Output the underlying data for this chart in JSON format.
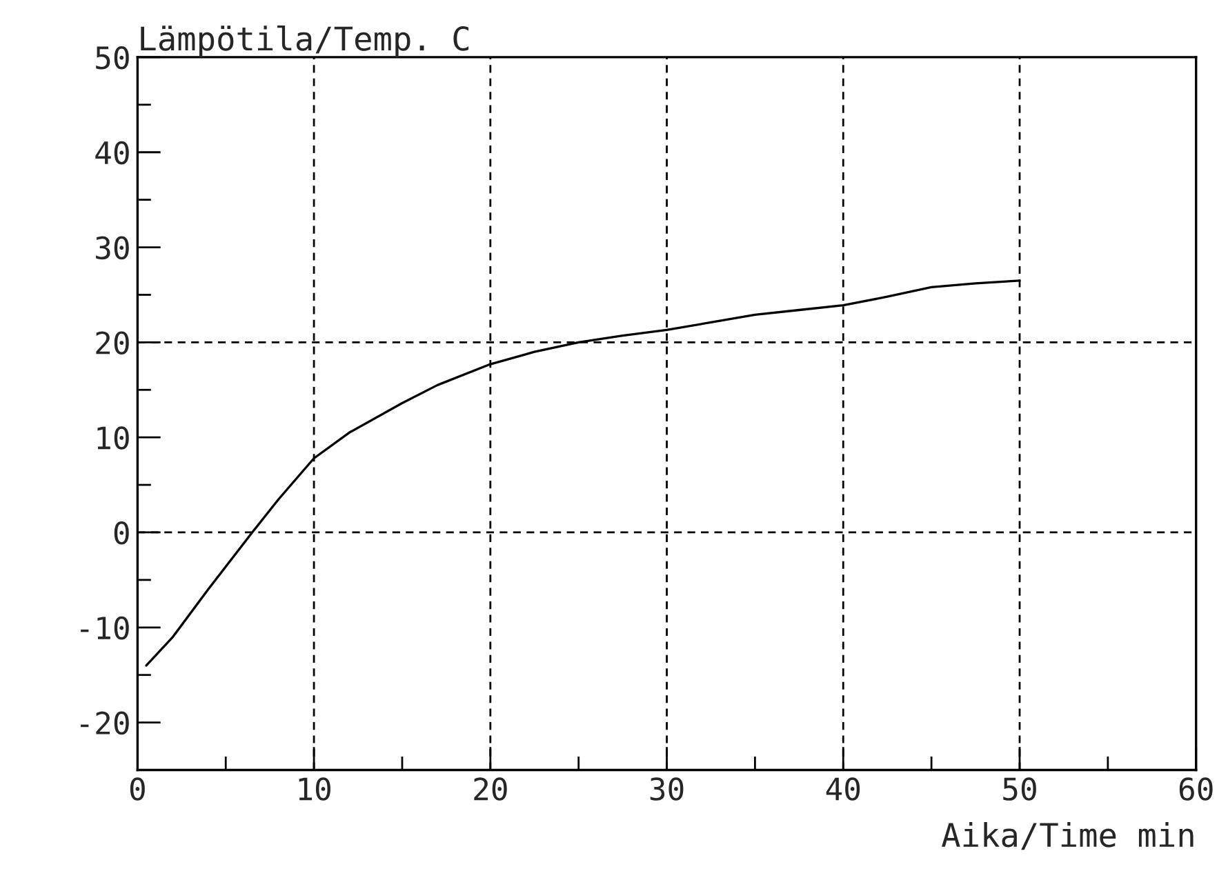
{
  "chart_data": {
    "type": "line",
    "ylabel": "Lämpötila/Temp. C",
    "xlabel": "Aika/Time min",
    "x": [
      0.5,
      2,
      4,
      6.5,
      8,
      10,
      12,
      15,
      17,
      20,
      22.5,
      25,
      27.5,
      30,
      32.5,
      35,
      37.5,
      40,
      42.5,
      45,
      47.5,
      50
    ],
    "series": [
      {
        "color": "#000000",
        "values": [
          -14,
          -11,
          -6,
          0,
          3.5,
          7.8,
          10.5,
          13.6,
          15.5,
          17.7,
          19,
          20,
          20.7,
          21.3,
          22.1,
          22.9,
          23.4,
          23.9,
          24.8,
          25.8,
          26.2,
          26.5
        ]
      }
    ],
    "xlim": [
      0,
      60
    ],
    "ylim": [
      -25,
      50
    ],
    "xticks": [
      0,
      {
        "value": 5,
        "label": null
      },
      10,
      {
        "value": 15,
        "label": null
      },
      20,
      {
        "value": 25,
        "label": null
      },
      30,
      {
        "value": 35,
        "label": null
      },
      40,
      {
        "value": 45,
        "label": null
      },
      50,
      {
        "value": 55,
        "label": null
      },
      60
    ],
    "yticks": [
      -20,
      {
        "value": -15,
        "label": null
      },
      -10,
      {
        "value": -5,
        "label": null
      },
      0,
      {
        "value": 5,
        "label": null
      },
      10,
      {
        "value": 15,
        "label": null
      },
      20,
      {
        "value": 25,
        "label": null
      },
      30,
      {
        "value": 35,
        "label": null
      },
      40,
      {
        "value": 45,
        "label": null
      },
      50
    ],
    "grid": "x",
    "ref_lines": [
      {
        "axis": "y",
        "value": 0,
        "line_style": "dashed"
      },
      {
        "axis": "y",
        "value": 20,
        "line_style": "dashed"
      }
    ],
    "line_style": "solid",
    "marker": "none",
    "legend": false
  }
}
